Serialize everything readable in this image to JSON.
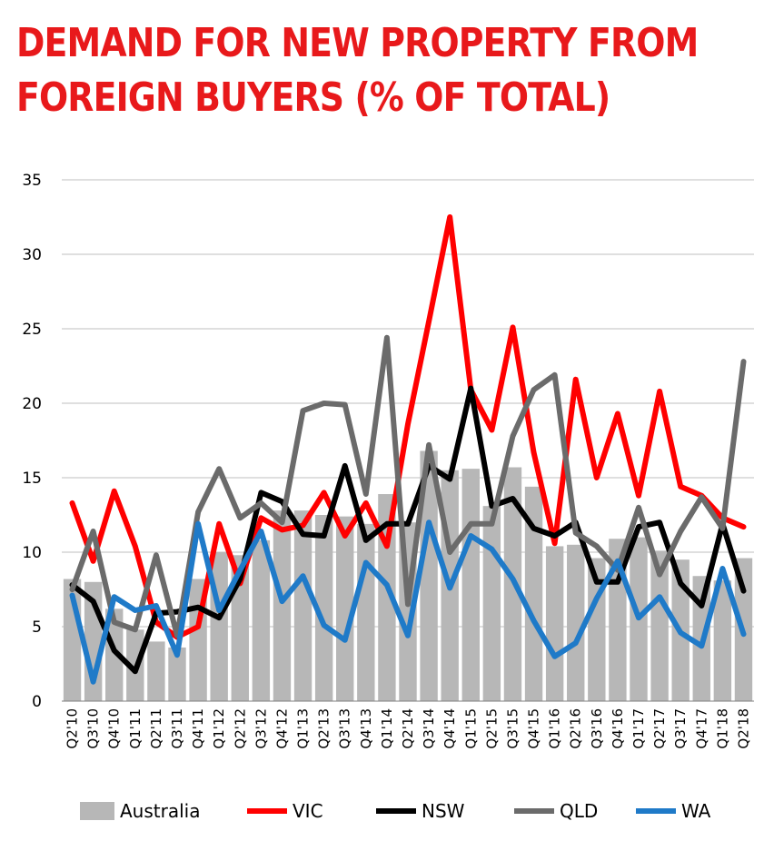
{
  "title_lines": [
    "DEMAND FOR NEW PROPERTY FROM",
    "FOREIGN BUYERS (% OF TOTAL)"
  ],
  "colors": {
    "title": "#e8191b",
    "Australia": "#b7b7b7",
    "VIC": "#ff0000",
    "NSW": "#000000",
    "QLD": "#6b6b6b",
    "WA": "#1f7ac8",
    "grid": "#bfbfbf"
  },
  "chart_data": {
    "type": "bar+line",
    "title": "DEMAND FOR NEW PROPERTY FROM FOREIGN BUYERS (% OF TOTAL)",
    "xlabel": "",
    "ylabel": "",
    "ylim": [
      0,
      35
    ],
    "yticks": [
      0,
      5,
      10,
      15,
      20,
      25,
      30,
      35
    ],
    "grid": true,
    "legend_position": "bottom",
    "categories": [
      "Q2'10",
      "Q3'10",
      "Q4'10",
      "Q1'11",
      "Q2'11",
      "Q3'11",
      "Q4'11",
      "Q1'12",
      "Q2'12",
      "Q3'12",
      "Q4'12",
      "Q1'13",
      "Q2'13",
      "Q3'13",
      "Q4'13",
      "Q1'14",
      "Q2'14",
      "Q3'14",
      "Q4'14",
      "Q1'15",
      "Q2'15",
      "Q3'15",
      "Q4'15",
      "Q1'16",
      "Q2'16",
      "Q3'16",
      "Q4'16",
      "Q1'17",
      "Q2'17",
      "Q3'17",
      "Q4'17",
      "Q1'18",
      "Q2'18"
    ],
    "bar_series": {
      "name": "Australia",
      "values": [
        8.2,
        8.0,
        6.2,
        4.8,
        4.0,
        3.6,
        8.2,
        10.0,
        9.8,
        10.8,
        12.8,
        12.8,
        12.5,
        12.4,
        11.9,
        13.9,
        12.0,
        16.8,
        15.5,
        15.6,
        13.1,
        15.7,
        14.4,
        10.4,
        10.5,
        9.6,
        10.9,
        11.0,
        10.1,
        9.5,
        8.4,
        8.1,
        9.6
      ]
    },
    "series": [
      {
        "name": "VIC",
        "values": [
          13.3,
          9.4,
          14.1,
          10.4,
          5.3,
          4.3,
          5.0,
          11.9,
          7.9,
          12.3,
          11.5,
          11.8,
          14.0,
          11.1,
          13.3,
          10.4,
          18.6,
          25.5,
          32.5,
          20.9,
          18.2,
          25.1,
          16.7,
          10.6,
          21.6,
          15.0,
          19.3,
          13.8,
          20.8,
          14.4,
          13.8,
          12.3,
          11.7
        ]
      },
      {
        "name": "NSW",
        "values": [
          7.8,
          6.7,
          3.4,
          2.0,
          5.9,
          6.0,
          6.3,
          5.6,
          8.2,
          14.0,
          13.4,
          11.2,
          11.1,
          15.8,
          10.8,
          11.9,
          11.9,
          15.8,
          14.9,
          21.0,
          13.1,
          13.6,
          11.6,
          11.1,
          12.0,
          8.0,
          8.0,
          11.7,
          12.0,
          7.9,
          6.4,
          11.9,
          7.4
        ]
      },
      {
        "name": "QLD",
        "values": [
          7.5,
          11.4,
          5.3,
          4.8,
          9.8,
          4.4,
          12.7,
          15.6,
          12.3,
          13.3,
          12.0,
          19.5,
          20.0,
          19.9,
          13.9,
          24.4,
          6.5,
          17.2,
          10.0,
          11.9,
          11.9,
          17.8,
          20.9,
          21.9,
          11.3,
          10.4,
          8.8,
          13.0,
          8.5,
          11.4,
          13.7,
          11.6,
          22.8
        ]
      },
      {
        "name": "WA",
        "values": [
          7.1,
          1.3,
          7.0,
          6.1,
          6.4,
          3.1,
          11.9,
          6.1,
          8.8,
          11.4,
          6.7,
          8.4,
          5.1,
          4.1,
          9.3,
          7.8,
          4.4,
          12.0,
          7.6,
          11.1,
          10.2,
          8.2,
          5.4,
          3.0,
          3.9,
          6.9,
          9.4,
          5.6,
          7.0,
          4.6,
          3.7,
          8.9,
          4.5
        ]
      }
    ]
  }
}
